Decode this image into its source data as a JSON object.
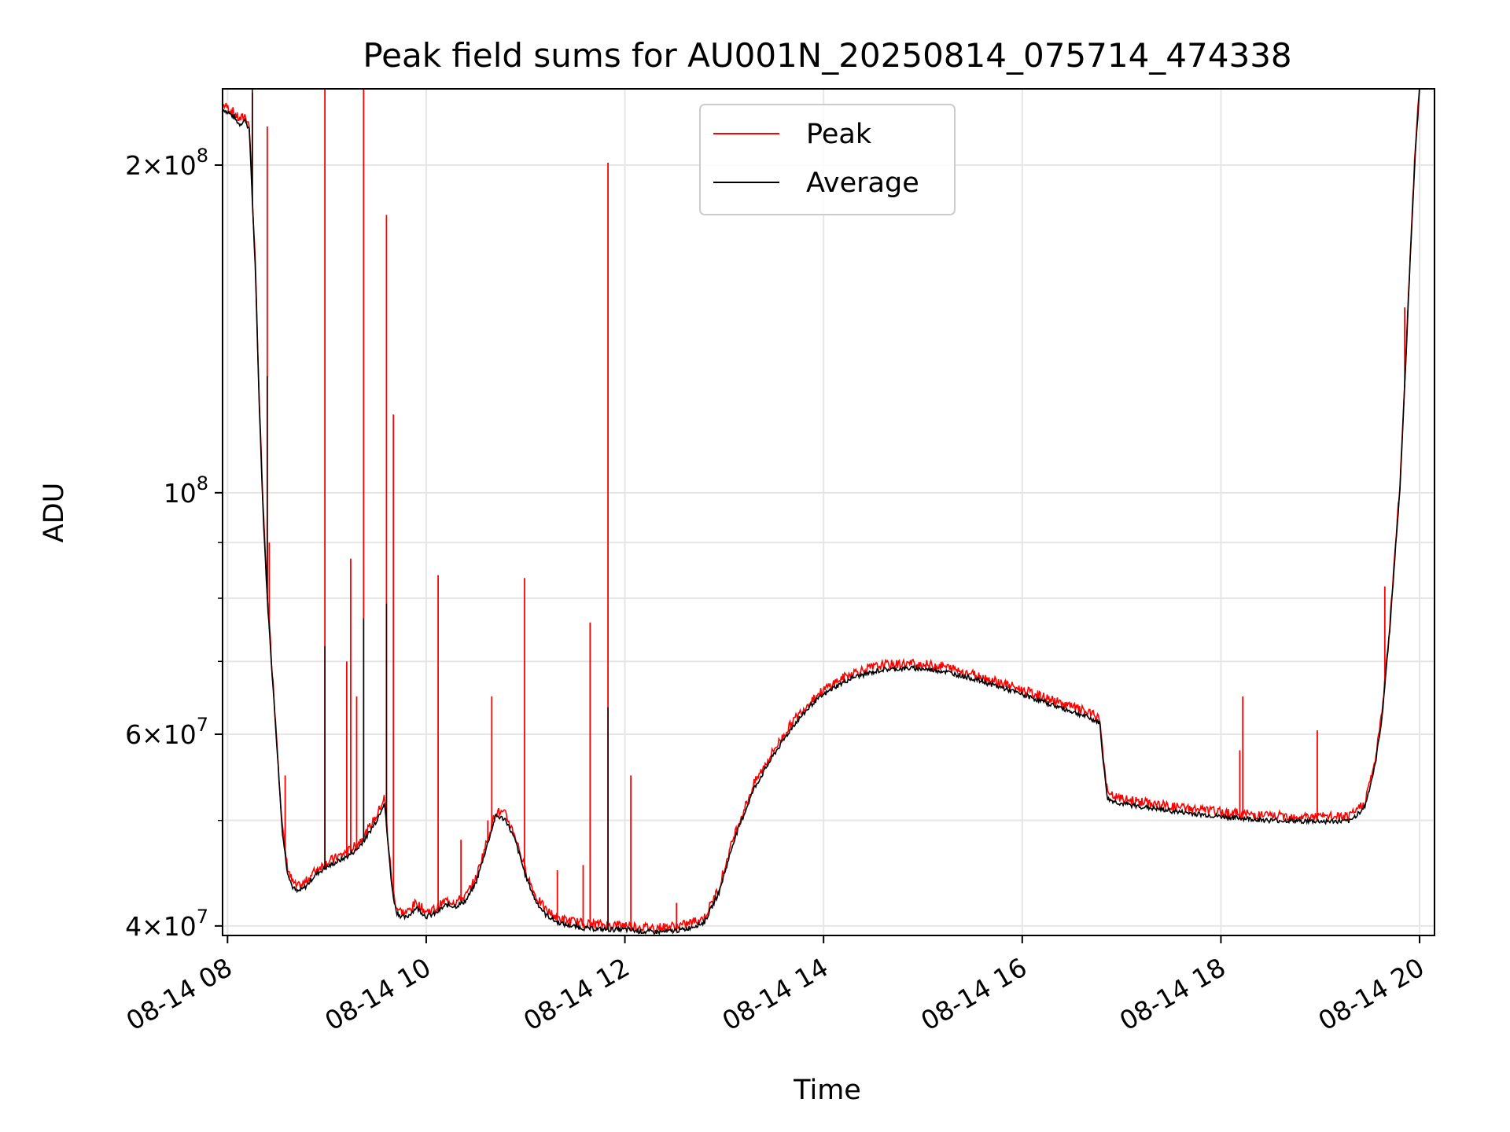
{
  "chart_data": {
    "type": "line",
    "title": "Peak field sums for AU001N_20250814_075714_474338",
    "xlabel": "Time",
    "ylabel": "ADU",
    "x_unit": "hours (08-14)",
    "xlim": [
      7.95,
      20.15
    ],
    "ylim": [
      39200000,
      235000000
    ],
    "yscale": "log",
    "grid": true,
    "legend_position": "upper center",
    "x_ticks": [
      {
        "value": 8,
        "label": "08-14 08"
      },
      {
        "value": 10,
        "label": "08-14 10"
      },
      {
        "value": 12,
        "label": "08-14 12"
      },
      {
        "value": 14,
        "label": "08-14 14"
      },
      {
        "value": 16,
        "label": "08-14 16"
      },
      {
        "value": 18,
        "label": "08-14 18"
      },
      {
        "value": 20,
        "label": "08-14 20"
      }
    ],
    "y_ticks": [
      {
        "value": 40000000,
        "mantissa": "4",
        "base": "10",
        "exp": "7"
      },
      {
        "value": 60000000,
        "mantissa": "6",
        "base": "10",
        "exp": "7"
      },
      {
        "value": 100000000,
        "mantissa": "",
        "base": "10",
        "exp": "8"
      },
      {
        "value": 200000000,
        "mantissa": "2",
        "base": "10",
        "exp": "8"
      }
    ],
    "y_minor_ticks": [
      50000000,
      70000000,
      80000000,
      90000000
    ],
    "series": [
      {
        "name": "Average",
        "color": "#000000",
        "x": [
          7.96,
          8.05,
          8.12,
          8.18,
          8.22,
          8.28,
          8.32,
          8.36,
          8.4,
          8.45,
          8.5,
          8.55,
          8.6,
          8.65,
          8.7,
          8.75,
          8.8,
          8.85,
          8.9,
          9.0,
          9.1,
          9.2,
          9.3,
          9.4,
          9.5,
          9.58,
          9.62,
          9.66,
          9.7,
          9.75,
          9.8,
          9.9,
          10.0,
          10.1,
          10.2,
          10.3,
          10.4,
          10.5,
          10.6,
          10.7,
          10.8,
          10.9,
          11.0,
          11.1,
          11.2,
          11.3,
          11.4,
          11.6,
          11.8,
          12.0,
          12.2,
          12.4,
          12.6,
          12.8,
          12.95,
          13.1,
          13.3,
          13.5,
          13.7,
          13.9,
          14.1,
          14.3,
          14.6,
          14.9,
          15.2,
          15.5,
          15.8,
          16.1,
          16.4,
          16.6,
          16.78,
          16.82,
          16.86,
          17.0,
          17.5,
          18.0,
          18.5,
          19.0,
          19.3,
          19.45,
          19.55,
          19.62,
          19.7,
          19.75,
          19.8,
          19.85,
          19.9,
          19.95,
          20.0
        ],
        "values": [
          225000000,
          222000000,
          218000000,
          220000000,
          215000000,
          160000000,
          120000000,
          95000000,
          80000000,
          68000000,
          58000000,
          49000000,
          45000000,
          43500000,
          43000000,
          43200000,
          43600000,
          44200000,
          44700000,
          45300000,
          45800000,
          46300000,
          47000000,
          48300000,
          50000000,
          52000000,
          47000000,
          43000000,
          41200000,
          40800000,
          40700000,
          41600000,
          40800000,
          41100000,
          41800000,
          41700000,
          42200000,
          43800000,
          47000000,
          50500000,
          50100000,
          47800000,
          44500000,
          42200000,
          41000000,
          40400000,
          40100000,
          39800000,
          39700000,
          39700000,
          39500000,
          39500000,
          39700000,
          40300000,
          43000000,
          48000000,
          53500000,
          57500000,
          61200000,
          64200000,
          66200000,
          67700000,
          68800000,
          69000000,
          68600000,
          67500000,
          66200000,
          64800000,
          63400000,
          62500000,
          61500000,
          56000000,
          52300000,
          51800000,
          51000000,
          50400000,
          50000000,
          49900000,
          49900000,
          51500000,
          56000000,
          62000000,
          75000000,
          87000000,
          100000000,
          125000000,
          160000000,
          200000000,
          235000000
        ]
      },
      {
        "name": "Peak",
        "color": "#ff0000",
        "spikes": [
          {
            "x": 8.25,
            "y": 233000000
          },
          {
            "x": 8.4,
            "y": 217000000
          },
          {
            "x": 8.42,
            "y": 90000000
          },
          {
            "x": 8.58,
            "y": 55000000
          },
          {
            "x": 8.98,
            "y": 235000000
          },
          {
            "x": 9.24,
            "y": 87000000
          },
          {
            "x": 9.37,
            "y": 235000000
          },
          {
            "x": 9.2,
            "y": 70000000
          },
          {
            "x": 9.3,
            "y": 65000000
          },
          {
            "x": 9.6,
            "y": 180000000
          },
          {
            "x": 9.67,
            "y": 118000000
          },
          {
            "x": 10.12,
            "y": 84000000
          },
          {
            "x": 10.35,
            "y": 48000000
          },
          {
            "x": 10.62,
            "y": 50000000
          },
          {
            "x": 10.66,
            "y": 65000000
          },
          {
            "x": 10.99,
            "y": 83500000
          },
          {
            "x": 11.32,
            "y": 45000000
          },
          {
            "x": 11.58,
            "y": 45500000
          },
          {
            "x": 11.65,
            "y": 76000000
          },
          {
            "x": 11.83,
            "y": 201000000
          },
          {
            "x": 12.06,
            "y": 55000000
          },
          {
            "x": 12.52,
            "y": 42000000
          },
          {
            "x": 18.22,
            "y": 65000000
          },
          {
            "x": 18.19,
            "y": 58000000
          },
          {
            "x": 18.97,
            "y": 60500000
          },
          {
            "x": 19.65,
            "y": 82000000
          },
          {
            "x": 19.85,
            "y": 148000000
          }
        ],
        "noise_amplitude": 0.02
      }
    ]
  }
}
